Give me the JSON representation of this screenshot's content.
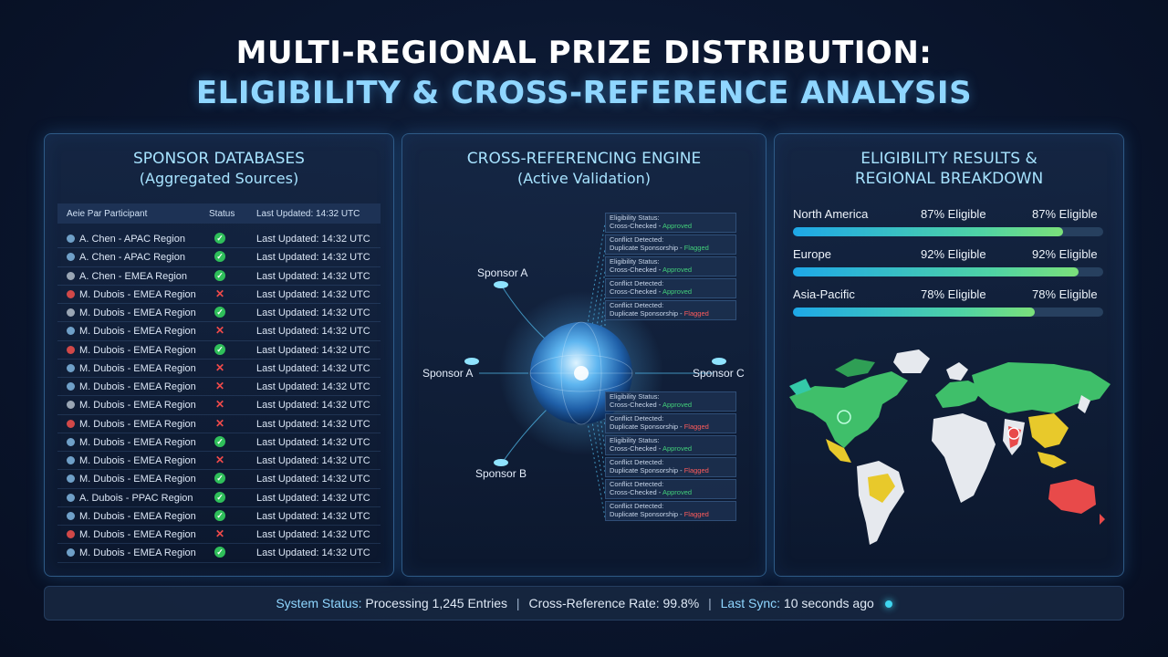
{
  "title": {
    "line1": "MULTI-REGIONAL PRIZE DISTRIBUTION:",
    "line2": "ELIGIBILITY & CROSS-REFERENCE ANALYSIS"
  },
  "sponsor_panel": {
    "title": "SPONSOR DATABASES",
    "subtitle": "(Aggregated Sources)",
    "headers": {
      "participant": "Aeie Par Participant",
      "status": "Status",
      "updated": "Last Updated: 14:32 UTC"
    },
    "rows": [
      {
        "name": "A. Chen - APAC Region",
        "status": "ok",
        "status_icon": "✓",
        "dot": "b",
        "updated": "Last Updated: 14:32 UTC"
      },
      {
        "name": "A. Chen - APAC Region",
        "status": "ok",
        "status_icon": "✓",
        "dot": "b",
        "updated": "Last Updated: 14:32 UTC"
      },
      {
        "name": "A. Chen - EMEA Region",
        "status": "ok",
        "status_icon": "✓",
        "dot": "g",
        "updated": "Last Updated: 14:32 UTC"
      },
      {
        "name": "M. Dubois - EMEA Region",
        "status": "bad",
        "status_icon": "✕",
        "dot": "r",
        "updated": "Last Updated: 14:32 UTC"
      },
      {
        "name": "M. Dubois - EMEA Region",
        "status": "ok",
        "status_icon": "✓",
        "dot": "g",
        "updated": "Last Updated: 14:32 UTC"
      },
      {
        "name": "M. Dubois - EMEA Region",
        "status": "bad",
        "status_icon": "✕",
        "dot": "b",
        "updated": "Last Updated: 14:32 UTC"
      },
      {
        "name": "M. Dubois - EMEA Region",
        "status": "ok",
        "status_icon": "✓",
        "dot": "r",
        "updated": "Last Updated: 14:32 UTC"
      },
      {
        "name": "M. Dubois - EMEA Region",
        "status": "bad",
        "status_icon": "✕",
        "dot": "b",
        "updated": "Last Updated: 14:32 UTC"
      },
      {
        "name": "M. Dubois - EMEA Region",
        "status": "bad",
        "status_icon": "✕",
        "dot": "b",
        "updated": "Last Updated: 14:32 UTC"
      },
      {
        "name": "M. Dubois - EMEA Region",
        "status": "bad",
        "status_icon": "✕",
        "dot": "g",
        "updated": "Last Updated: 14:32 UTC"
      },
      {
        "name": "M. Dubois - EMEA Region",
        "status": "bad",
        "status_icon": "✕",
        "dot": "r",
        "updated": "Last Updated: 14:32 UTC"
      },
      {
        "name": "M. Dubois - EMEA Region",
        "status": "ok",
        "status_icon": "✓",
        "dot": "b",
        "updated": "Last Updated: 14:32 UTC"
      },
      {
        "name": "M. Dubois - EMEA Region",
        "status": "bad",
        "status_icon": "✕",
        "dot": "b",
        "updated": "Last Updated: 14:32 UTC"
      },
      {
        "name": "M. Dubois - EMEA Region",
        "status": "ok",
        "status_icon": "✓",
        "dot": "b",
        "updated": "Last Updated: 14:32 UTC"
      },
      {
        "name": "A. Dubois - PPAC Region",
        "status": "ok",
        "status_icon": "✓",
        "dot": "b",
        "updated": "Last Updated: 14:32 UTC"
      },
      {
        "name": "M. Dubois - EMEA Region",
        "status": "ok",
        "status_icon": "✓",
        "dot": "b",
        "updated": "Last Updated: 14:32 UTC"
      },
      {
        "name": "M. Dubois - EMEA Region",
        "status": "bad",
        "status_icon": "✕",
        "dot": "r",
        "updated": "Last Updated: 14:32 UTC"
      },
      {
        "name": "M. Dubois - EMEA Region",
        "status": "ok",
        "status_icon": "✓",
        "dot": "b",
        "updated": "Last Updated: 14:32 UTC"
      }
    ]
  },
  "engine_panel": {
    "title": "CROSS-REFERENCING ENGINE",
    "subtitle": "(Active Validation)",
    "nodes": {
      "a_top": "Sponsor A",
      "a_left": "Sponsor A",
      "b": "Sponsor B",
      "c": "Sponsor C"
    },
    "cards": [
      {
        "l1": "Eligibility Status:",
        "l2": "Cross-Checked - ",
        "tag": "Approved",
        "kind": "ok"
      },
      {
        "l1": "Conflict Detected:",
        "l2": "Duplicate Sponsorship - ",
        "tag": "Flagged",
        "kind": "ok"
      },
      {
        "l1": "Eligibility Status:",
        "l2": "Cross-Checked - ",
        "tag": "Approved",
        "kind": "ok"
      },
      {
        "l1": "Conflict Detected:",
        "l2": "Cross-Checked - ",
        "tag": "Approved",
        "kind": "ok"
      },
      {
        "l1": "Conflict Detected:",
        "l2": "Duplicate Sponsorship - ",
        "tag": "Flagged",
        "kind": "fl"
      },
      {
        "l1": "Eligibility Status:",
        "l2": "Cross-Checked - ",
        "tag": "Approved",
        "kind": "ok"
      },
      {
        "l1": "Conflict Detected:",
        "l2": "Duplicate Sponsorship - ",
        "tag": "Flagged",
        "kind": "fl"
      },
      {
        "l1": "Eligibility Status:",
        "l2": "Cross-Checked - ",
        "tag": "Approved",
        "kind": "ok"
      },
      {
        "l1": "Conflict Detected:",
        "l2": "Duplicate Sponsorship - ",
        "tag": "Flagged",
        "kind": "fl"
      },
      {
        "l1": "Conflict Detected:",
        "l2": "Cross-Checked - ",
        "tag": "Approved",
        "kind": "ok"
      },
      {
        "l1": "Conflict Detected:",
        "l2": "Duplicate Sponsorship - ",
        "tag": "Flagged",
        "kind": "fl"
      }
    ]
  },
  "results_panel": {
    "title_line1": "ELIGIBILITY RESULTS &",
    "title_line2": "REGIONAL BREAKDOWN",
    "regions": [
      {
        "name": "North America",
        "left_text": "87% Eligible",
        "right_text": "87% Eligible",
        "value": 0.87
      },
      {
        "name": "Europe",
        "left_text": "92% Eligible",
        "right_text": "92% Eligible",
        "value": 0.92
      },
      {
        "name": "Asia-Pacific",
        "left_text": "78% Eligible",
        "right_text": "78% Eligible",
        "value": 0.78
      }
    ]
  },
  "footer": {
    "status_key": "System Status:",
    "status_val": "Processing 1,245 Entries",
    "rate_key": "Cross-Reference Rate:",
    "rate_val": "99.8%",
    "sync_key": "Last Sync:",
    "sync_val": "10 seconds ago"
  }
}
